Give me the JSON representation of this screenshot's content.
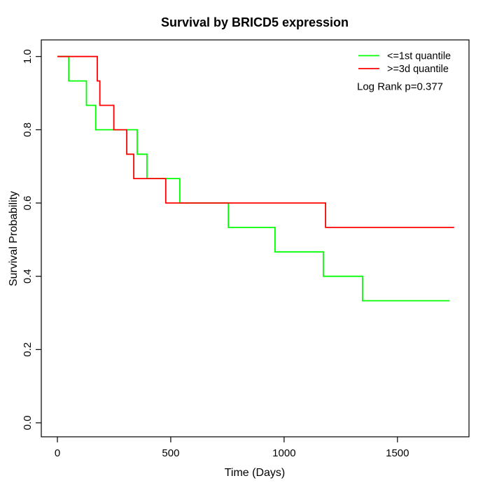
{
  "title": "Survival by BRICD5 expression",
  "legend": {
    "position": "top-right",
    "entries": [
      {
        "label": "<=1st quantile",
        "color": "#00ff00"
      },
      {
        "label": ">=3d quantile",
        "color": "#ff0000"
      }
    ]
  },
  "annotation": "Log Rank p=0.377",
  "chart_data": {
    "type": "line",
    "subtype": "kaplan-meier-step",
    "title": "Survival by BRICD5 expression",
    "xlabel": "Time (Days)",
    "ylabel": "Survival Probability",
    "xlim": [
      0,
      1760
    ],
    "ylim": [
      0.0,
      1.0
    ],
    "x_ticks": [
      0,
      500,
      1000,
      1500
    ],
    "y_ticks": [
      "0.0",
      "0.2",
      "0.4",
      "0.6",
      "0.8",
      "1.0"
    ],
    "grid": "off",
    "legend_position": "top-right",
    "annotation": "Log Rank p=0.377",
    "series": [
      {
        "name": "<=1st quantile",
        "color": "#00ff00",
        "step": "post",
        "x": [
          0,
          50,
          128,
          169,
          352,
          395,
          540,
          754,
          960,
          1173,
          1346,
          1730
        ],
        "y": [
          1.0,
          0.9333,
          0.8667,
          0.8,
          0.7333,
          0.6667,
          0.6,
          0.5333,
          0.4667,
          0.4,
          0.3333,
          0.3333
        ]
      },
      {
        "name": ">=3d quantile",
        "color": "#ff0000",
        "step": "post",
        "x": [
          0,
          176,
          187,
          249,
          306,
          337,
          478,
          1183,
          1750
        ],
        "y": [
          1.0,
          0.9333,
          0.8667,
          0.8,
          0.7333,
          0.6667,
          0.6,
          0.5333,
          0.5333
        ]
      }
    ]
  }
}
